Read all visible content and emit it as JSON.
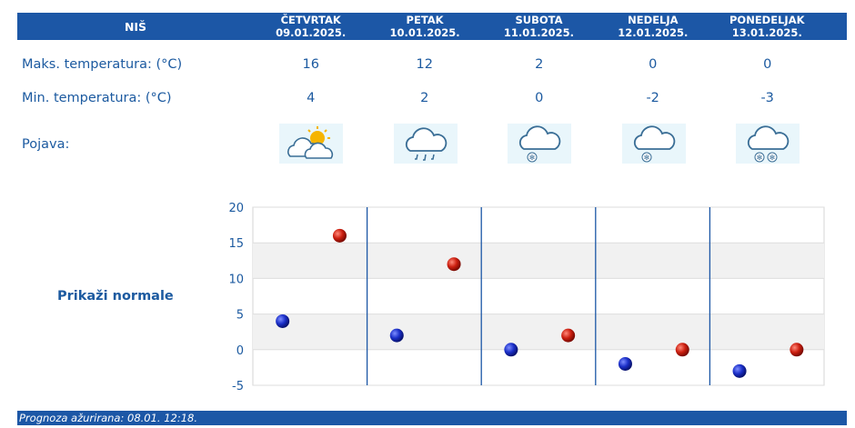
{
  "header": {
    "city": "NIŠ"
  },
  "days": [
    {
      "name": "ČETVRTAK",
      "date": "09.01.2025.",
      "max": "16",
      "min": "4",
      "icon": "partly-cloudy-sun-icon"
    },
    {
      "name": "PETAK",
      "date": "10.01.2025.",
      "max": "12",
      "min": "2",
      "icon": "rain-cloud-icon"
    },
    {
      "name": "SUBOTA",
      "date": "11.01.2025.",
      "max": "2",
      "min": "0",
      "icon": "snow-cloud-icon"
    },
    {
      "name": "NEDELJA",
      "date": "12.01.2025.",
      "max": "0",
      "min": "-2",
      "icon": "snow-cloud-icon"
    },
    {
      "name": "PONEDELJAK",
      "date": "13.01.2025.",
      "max": "0",
      "min": "-3",
      "icon": "heavy-snow-cloud-icon"
    }
  ],
  "labels": {
    "max": "Maks. temperatura: (°C)",
    "min": "Min. temperatura: (°C)",
    "pojava": "Pojava:",
    "normals": "Prikaži normale"
  },
  "footer": {
    "text": "Prognoza ažurirana:  08.01. 12:18."
  },
  "colors": {
    "accent": "#1c57a6",
    "max_marker": "#cc1f10",
    "min_marker": "#1b2fc8",
    "band": "#f1f1f1"
  },
  "chart_data": {
    "type": "scatter",
    "categories": [
      "09.01.2025.",
      "10.01.2025.",
      "11.01.2025.",
      "12.01.2025.",
      "13.01.2025."
    ],
    "series": [
      {
        "values": [
          4,
          2,
          0,
          -2,
          -3
        ]
      },
      {
        "values": [
          16,
          12,
          2,
          0,
          0
        ]
      }
    ],
    "yticks": [
      "20",
      "15",
      "10",
      "5",
      "0",
      "-5"
    ],
    "ylim": [
      -5,
      20
    ],
    "grid": "alternating horizontal bands, vertical day separators"
  }
}
